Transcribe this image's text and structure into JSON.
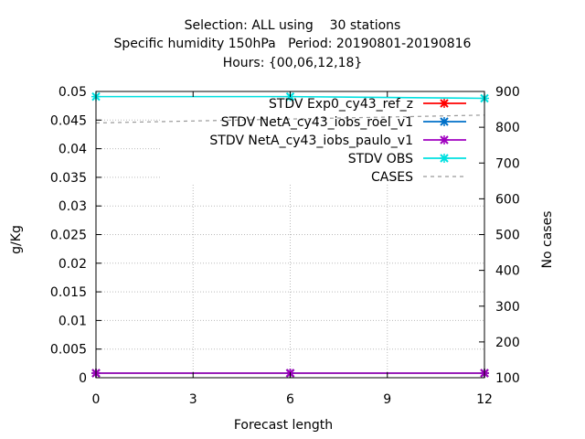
{
  "chart_data": {
    "type": "line",
    "title_lines": [
      "Selection: ALL using    30 stations",
      "Specific humidity 150hPa   Period: 20190801-20190816",
      "Hours: {00,06,12,18}"
    ],
    "xlabel": "Forecast length",
    "ylabel": "g/Kg",
    "y2label": "No cases",
    "xlim": [
      0,
      12
    ],
    "ylim": [
      0,
      0.05
    ],
    "y2lim": [
      100,
      900
    ],
    "x_ticks": [
      "0",
      "3",
      "6",
      "9",
      "12"
    ],
    "y_ticks": [
      "0",
      "0.005",
      "0.01",
      "0.015",
      "0.02",
      "0.025",
      "0.03",
      "0.035",
      "0.04",
      "0.045",
      "0.05"
    ],
    "y2_ticks": [
      "100",
      "200",
      "300",
      "400",
      "500",
      "600",
      "700",
      "800",
      "900"
    ],
    "grid": true,
    "legend_position": "top-right",
    "x": [
      0,
      6,
      12
    ],
    "series": [
      {
        "name": "STDV Exp0_cy43_ref_z",
        "axis": "y",
        "color": "#ff0000",
        "values": [
          0.0008,
          0.0008,
          0.0008
        ]
      },
      {
        "name": "STDV NetA_cy43_iobs_roel_v1",
        "axis": "y",
        "color": "#0070c8",
        "values": [
          0.0008,
          0.0008,
          0.0008
        ]
      },
      {
        "name": "STDV NetA_cy43_iobs_paulo_v1",
        "axis": "y",
        "color": "#a000c0",
        "values": [
          0.0008,
          0.0008,
          0.0008
        ]
      },
      {
        "name": "STDV OBS",
        "axis": "y",
        "color": "#00e0e0",
        "values": [
          0.0491,
          0.0491,
          0.0488
        ]
      },
      {
        "name": "CASES",
        "axis": "y2",
        "color": "#999999",
        "dashed": true,
        "values": [
          812,
          823,
          834
        ]
      }
    ]
  }
}
